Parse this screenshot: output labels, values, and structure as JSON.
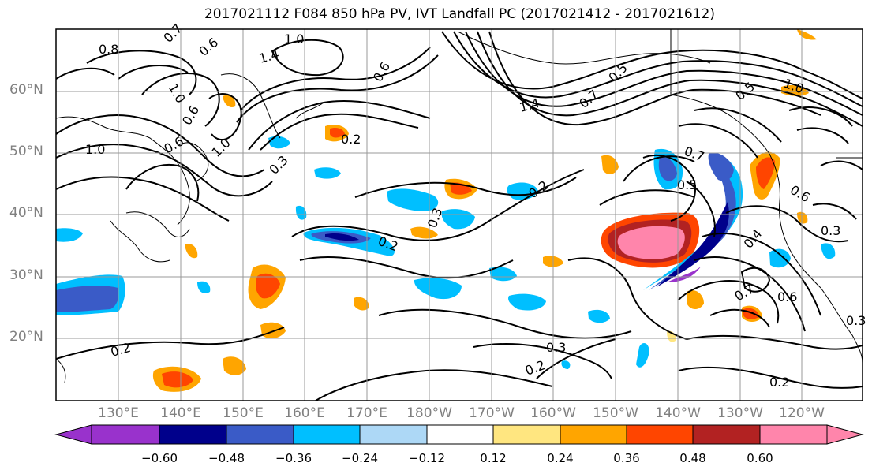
{
  "title": "2017021112 F084 850 hPa PV, IVT Landfall PC (2017021412 - 2017021612)",
  "latitude_labels": [
    "60°N",
    "50°N",
    "40°N",
    "30°N",
    "20°N"
  ],
  "longitude_labels": [
    "130°E",
    "140°E",
    "150°E",
    "160°E",
    "170°E",
    "180°W",
    "170°W",
    "160°W",
    "150°W",
    "140°W",
    "130°W",
    "120°W"
  ],
  "contour_labels": [
    "0.8",
    "0.7",
    "0.6",
    "1.0",
    "1.4",
    "1.0",
    "0.6",
    "1.0",
    "0.6",
    "1.0",
    "0.3",
    "0.2",
    "1.4",
    "0.7",
    "0.6",
    "0.5",
    "1.0",
    "0.5",
    "0.7",
    "0.5",
    "0.6",
    "0.2",
    "0.3",
    "0.2",
    "0.4",
    "0.3",
    "0.7",
    "0.6",
    "0.3",
    "0.2",
    "0.3",
    "0.2",
    "0.2"
  ],
  "colorbar": {
    "ticks": [
      "−0.60",
      "−0.48",
      "−0.36",
      "−0.24",
      "−0.12",
      "0.12",
      "0.24",
      "0.36",
      "0.48",
      "0.60"
    ],
    "colors": [
      "#9932CC",
      "#00008B",
      "#3A5BC7",
      "#00BFFF",
      "#ADD8F6",
      "#FFFFFF",
      "#FFE680",
      "#FFA500",
      "#FF4500",
      "#B22222",
      "#FF85AB"
    ]
  }
}
